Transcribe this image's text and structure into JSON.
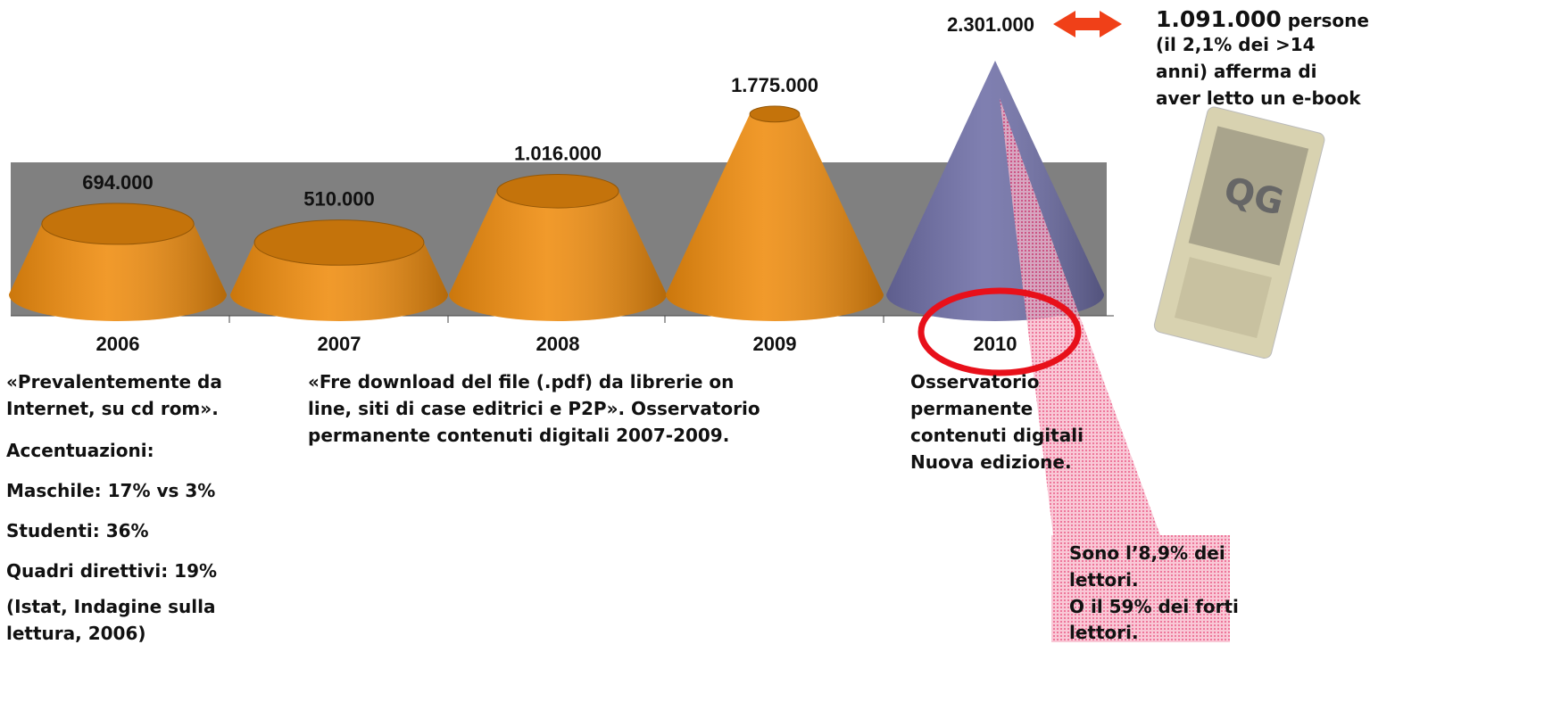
{
  "chart_data": {
    "type": "cone",
    "categories": [
      "2006",
      "2007",
      "2008",
      "2009",
      "2010"
    ],
    "values": [
      694000,
      510000,
      1016000,
      1775000,
      2301000
    ],
    "value_labels": [
      "694.000",
      "510.000",
      "1.016.000",
      "1.775.000",
      "2.301.000"
    ],
    "colors": [
      "#ef8c0e",
      "#ef8c0e",
      "#ef8c0e",
      "#ef8c0e",
      "#6e6ea6"
    ],
    "annotations": {
      "left": [
        "«Prevalentemente da",
        "Internet, su cd rom».",
        "Accentuazioni:",
        "Maschile: 17% vs 3%",
        "Studenti: 36%",
        "Quadri direttivi: 19%",
        "(Istat, Indagine sulla",
        "lettura, 2006)"
      ],
      "middle": [
        "«Fre download del file (.pdf) da librerie on",
        "line, siti di case editrici e P2P». Osservatorio",
        "permanente contenuti digitali 2007-2009."
      ],
      "note_2010": [
        "Osservatorio",
        "permanente",
        "contenuti digitali",
        "Nuova edizione."
      ],
      "right_head": "1.091.000",
      "right": [
        " persone",
        "(il 2,1% dei >14",
        "anni) afferma di",
        "aver letto un e-book"
      ],
      "callout": [
        "Sono l’8,9% dei",
        "lettori.",
        "O il 59% dei forti",
        "lettori."
      ]
    }
  }
}
